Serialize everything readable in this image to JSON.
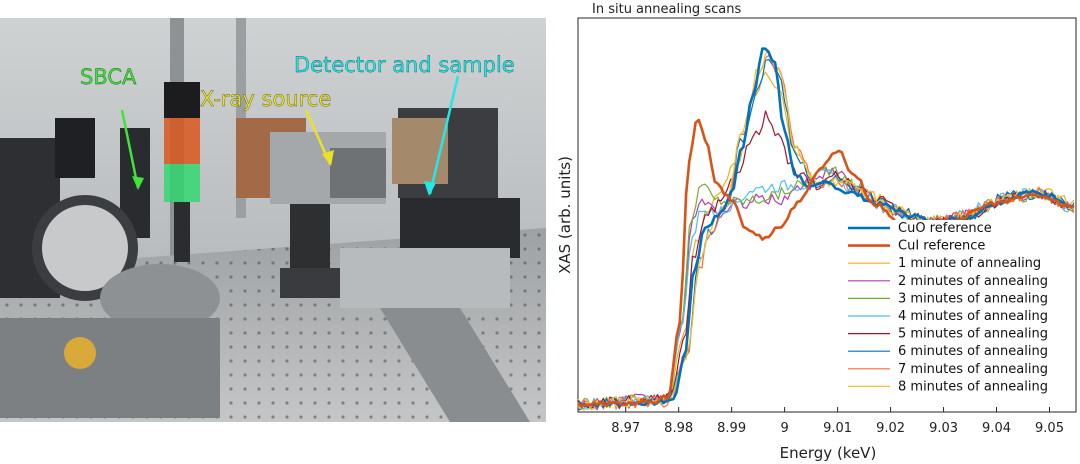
{
  "photo": {
    "labels": {
      "sbca": "SBCA",
      "xray_source": "X-ray source",
      "detector_sample": "Detector and sample"
    },
    "colors": {
      "sbca": "#3fe33a",
      "xray_source": "#e8e22b",
      "detector_sample": "#23e8e8"
    }
  },
  "chart_data": {
    "type": "line",
    "title": "In situ annealing scans",
    "xlabel": "Energy (keV)",
    "ylabel": "XAS (arb. units)",
    "xlim": [
      8.961,
      9.055
    ],
    "ylim": [
      -0.05,
      2.55
    ],
    "xticks": [
      "8.97",
      "8.98",
      "8.99",
      "9",
      "9.01",
      "9.02",
      "9.03",
      "9.04",
      "9.05"
    ],
    "grid": false,
    "legend_position": "bottom-right",
    "series": [
      {
        "name": "CuO reference",
        "color": "#0072bd",
        "width": 2.6,
        "noise": 0.015,
        "points": [
          [
            8.961,
            0.0
          ],
          [
            8.975,
            0.01
          ],
          [
            8.979,
            0.03
          ],
          [
            8.981,
            0.3
          ],
          [
            8.983,
            0.9
          ],
          [
            8.985,
            1.17
          ],
          [
            8.988,
            1.26
          ],
          [
            8.99,
            1.4
          ],
          [
            8.992,
            1.7
          ],
          [
            8.994,
            2.05
          ],
          [
            8.996,
            2.35
          ],
          [
            8.998,
            2.27
          ],
          [
            9.0,
            1.8
          ],
          [
            9.002,
            1.52
          ],
          [
            9.005,
            1.43
          ],
          [
            9.008,
            1.46
          ],
          [
            9.012,
            1.4
          ],
          [
            9.018,
            1.32
          ],
          [
            9.024,
            1.25
          ],
          [
            9.028,
            1.2
          ],
          [
            9.034,
            1.23
          ],
          [
            9.04,
            1.33
          ],
          [
            9.046,
            1.4
          ],
          [
            9.05,
            1.38
          ],
          [
            9.055,
            1.3
          ]
        ]
      },
      {
        "name": "CuI reference",
        "color": "#d95319",
        "width": 2.6,
        "noise": 0.015,
        "points": [
          [
            8.961,
            0.0
          ],
          [
            8.975,
            0.01
          ],
          [
            8.978,
            0.05
          ],
          [
            8.98,
            0.5
          ],
          [
            8.982,
            1.6
          ],
          [
            8.9835,
            1.9
          ],
          [
            8.9855,
            1.7
          ],
          [
            8.987,
            1.45
          ],
          [
            8.99,
            1.35
          ],
          [
            8.993,
            1.15
          ],
          [
            8.996,
            1.1
          ],
          [
            8.999,
            1.17
          ],
          [
            9.003,
            1.35
          ],
          [
            9.007,
            1.57
          ],
          [
            9.01,
            1.68
          ],
          [
            9.013,
            1.52
          ],
          [
            9.017,
            1.32
          ],
          [
            9.022,
            1.2
          ],
          [
            9.027,
            1.17
          ],
          [
            9.032,
            1.22
          ],
          [
            9.04,
            1.33
          ],
          [
            9.047,
            1.38
          ],
          [
            9.055,
            1.3
          ]
        ]
      },
      {
        "name": "1 minute of annealing",
        "color": "#edb120",
        "width": 1.2,
        "noise": 0.04,
        "points": [
          [
            8.961,
            0.0
          ],
          [
            8.978,
            0.03
          ],
          [
            8.981,
            0.45
          ],
          [
            8.983,
            1.05
          ],
          [
            8.9855,
            1.3
          ],
          [
            8.988,
            1.4
          ],
          [
            8.991,
            1.6
          ],
          [
            8.994,
            2.0
          ],
          [
            8.9965,
            2.2
          ],
          [
            8.999,
            2.1
          ],
          [
            9.002,
            1.65
          ],
          [
            9.006,
            1.46
          ],
          [
            9.01,
            1.48
          ],
          [
            9.016,
            1.38
          ],
          [
            9.022,
            1.28
          ],
          [
            9.028,
            1.22
          ],
          [
            9.035,
            1.25
          ],
          [
            9.042,
            1.37
          ],
          [
            9.048,
            1.4
          ],
          [
            9.055,
            1.32
          ]
        ]
      },
      {
        "name": "2 minutes of annealing",
        "color": "#b23ab8",
        "width": 1.2,
        "noise": 0.04,
        "points": [
          [
            8.961,
            0.0
          ],
          [
            8.978,
            0.04
          ],
          [
            8.9805,
            0.5
          ],
          [
            8.9825,
            1.2
          ],
          [
            8.985,
            1.35
          ],
          [
            8.988,
            1.25
          ],
          [
            8.991,
            1.32
          ],
          [
            8.995,
            1.35
          ],
          [
            8.999,
            1.35
          ],
          [
            9.004,
            1.45
          ],
          [
            9.009,
            1.55
          ],
          [
            9.014,
            1.42
          ],
          [
            9.02,
            1.28
          ],
          [
            9.027,
            1.2
          ],
          [
            9.034,
            1.25
          ],
          [
            9.041,
            1.36
          ],
          [
            9.048,
            1.38
          ],
          [
            9.055,
            1.3
          ]
        ]
      },
      {
        "name": "3 minutes of annealing",
        "color": "#77ac30",
        "width": 1.2,
        "noise": 0.04,
        "points": [
          [
            8.961,
            0.0
          ],
          [
            8.978,
            0.04
          ],
          [
            8.9805,
            0.55
          ],
          [
            8.9825,
            1.25
          ],
          [
            8.9845,
            1.45
          ],
          [
            8.987,
            1.35
          ],
          [
            8.99,
            1.34
          ],
          [
            8.994,
            1.35
          ],
          [
            8.998,
            1.38
          ],
          [
            9.003,
            1.45
          ],
          [
            9.008,
            1.55
          ],
          [
            9.013,
            1.45
          ],
          [
            9.019,
            1.3
          ],
          [
            9.026,
            1.2
          ],
          [
            9.034,
            1.24
          ],
          [
            9.041,
            1.35
          ],
          [
            9.048,
            1.38
          ],
          [
            9.055,
            1.3
          ]
        ]
      },
      {
        "name": "4 minutes of annealing",
        "color": "#4dbeee",
        "width": 1.2,
        "noise": 0.04,
        "points": [
          [
            8.961,
            0.0
          ],
          [
            8.978,
            0.04
          ],
          [
            8.9805,
            0.5
          ],
          [
            8.9825,
            1.1
          ],
          [
            8.9845,
            1.3
          ],
          [
            8.987,
            1.25
          ],
          [
            8.99,
            1.32
          ],
          [
            8.994,
            1.42
          ],
          [
            8.998,
            1.44
          ],
          [
            9.003,
            1.45
          ],
          [
            9.008,
            1.52
          ],
          [
            9.013,
            1.43
          ],
          [
            9.019,
            1.3
          ],
          [
            9.026,
            1.2
          ],
          [
            9.033,
            1.24
          ],
          [
            9.04,
            1.35
          ],
          [
            9.047,
            1.39
          ],
          [
            9.055,
            1.3
          ]
        ]
      },
      {
        "name": "5 minutes of annealing",
        "color": "#a2142f",
        "width": 1.2,
        "noise": 0.04,
        "points": [
          [
            8.961,
            0.0
          ],
          [
            8.978,
            0.03
          ],
          [
            8.981,
            0.4
          ],
          [
            8.983,
            1.0
          ],
          [
            8.9855,
            1.25
          ],
          [
            8.988,
            1.32
          ],
          [
            8.991,
            1.55
          ],
          [
            8.994,
            1.75
          ],
          [
            8.9965,
            1.9
          ],
          [
            8.999,
            1.75
          ],
          [
            9.002,
            1.52
          ],
          [
            9.006,
            1.45
          ],
          [
            9.01,
            1.5
          ],
          [
            9.016,
            1.38
          ],
          [
            9.022,
            1.27
          ],
          [
            9.028,
            1.2
          ],
          [
            9.035,
            1.24
          ],
          [
            9.042,
            1.36
          ],
          [
            9.048,
            1.39
          ],
          [
            9.055,
            1.3
          ]
        ]
      },
      {
        "name": "6 minutes of annealing",
        "color": "#0072bd",
        "width": 1.2,
        "noise": 0.04,
        "points": [
          [
            8.961,
            0.0
          ],
          [
            8.978,
            0.02
          ],
          [
            8.9815,
            0.35
          ],
          [
            8.984,
            0.95
          ],
          [
            8.986,
            1.15
          ],
          [
            8.989,
            1.3
          ],
          [
            8.992,
            1.75
          ],
          [
            8.995,
            2.1
          ],
          [
            8.997,
            2.28
          ],
          [
            8.999,
            2.15
          ],
          [
            9.002,
            1.65
          ],
          [
            9.006,
            1.45
          ],
          [
            9.01,
            1.47
          ],
          [
            9.016,
            1.37
          ],
          [
            9.022,
            1.27
          ],
          [
            9.028,
            1.19
          ],
          [
            9.035,
            1.25
          ],
          [
            9.042,
            1.37
          ],
          [
            9.048,
            1.39
          ],
          [
            9.055,
            1.3
          ]
        ]
      },
      {
        "name": "7 minutes of annealing",
        "color": "#ff6a3d",
        "width": 1.2,
        "noise": 0.04,
        "points": [
          [
            8.961,
            0.0
          ],
          [
            8.978,
            0.02
          ],
          [
            8.9815,
            0.3
          ],
          [
            8.984,
            0.9
          ],
          [
            8.986,
            1.15
          ],
          [
            8.989,
            1.33
          ],
          [
            8.992,
            1.8
          ],
          [
            8.995,
            2.15
          ],
          [
            8.997,
            2.3
          ],
          [
            8.999,
            2.2
          ],
          [
            9.002,
            1.7
          ],
          [
            9.006,
            1.45
          ],
          [
            9.01,
            1.46
          ],
          [
            9.016,
            1.37
          ],
          [
            9.022,
            1.26
          ],
          [
            9.028,
            1.2
          ],
          [
            9.035,
            1.26
          ],
          [
            9.042,
            1.37
          ],
          [
            9.048,
            1.4
          ],
          [
            9.055,
            1.3
          ]
        ]
      },
      {
        "name": "8 minutes of annealing",
        "color": "#f2c230",
        "width": 1.2,
        "noise": 0.04,
        "points": [
          [
            8.961,
            0.0
          ],
          [
            8.978,
            0.02
          ],
          [
            8.9815,
            0.32
          ],
          [
            8.984,
            0.92
          ],
          [
            8.986,
            1.16
          ],
          [
            8.989,
            1.34
          ],
          [
            8.992,
            1.82
          ],
          [
            8.995,
            2.2
          ],
          [
            8.997,
            2.33
          ],
          [
            8.999,
            2.2
          ],
          [
            9.002,
            1.7
          ],
          [
            9.006,
            1.45
          ],
          [
            9.01,
            1.46
          ],
          [
            9.016,
            1.37
          ],
          [
            9.022,
            1.27
          ],
          [
            9.028,
            1.2
          ],
          [
            9.035,
            1.25
          ],
          [
            9.042,
            1.38
          ],
          [
            9.048,
            1.4
          ],
          [
            9.055,
            1.31
          ]
        ]
      }
    ]
  }
}
